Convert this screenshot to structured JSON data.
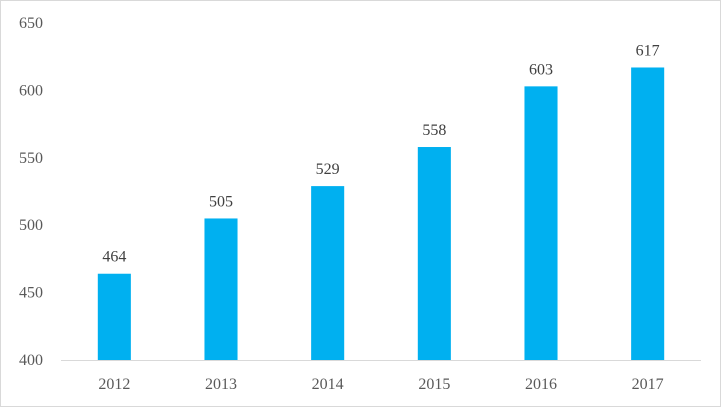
{
  "chart_data": {
    "type": "bar",
    "title": "",
    "xlabel": "",
    "ylabel": "",
    "categories": [
      "2012",
      "2013",
      "2014",
      "2015",
      "2016",
      "2017"
    ],
    "values": [
      464,
      505,
      529,
      558,
      603,
      617
    ],
    "data_labels": [
      "464",
      "505",
      "529",
      "558",
      "603",
      "617"
    ],
    "ylim": [
      400,
      650
    ],
    "yticks": [
      400,
      450,
      500,
      550,
      600,
      650
    ],
    "ytick_labels": [
      "400",
      "450",
      "500",
      "550",
      "600",
      "650"
    ],
    "grid": false,
    "legend": "none",
    "bar_color": "#00B0F0"
  }
}
